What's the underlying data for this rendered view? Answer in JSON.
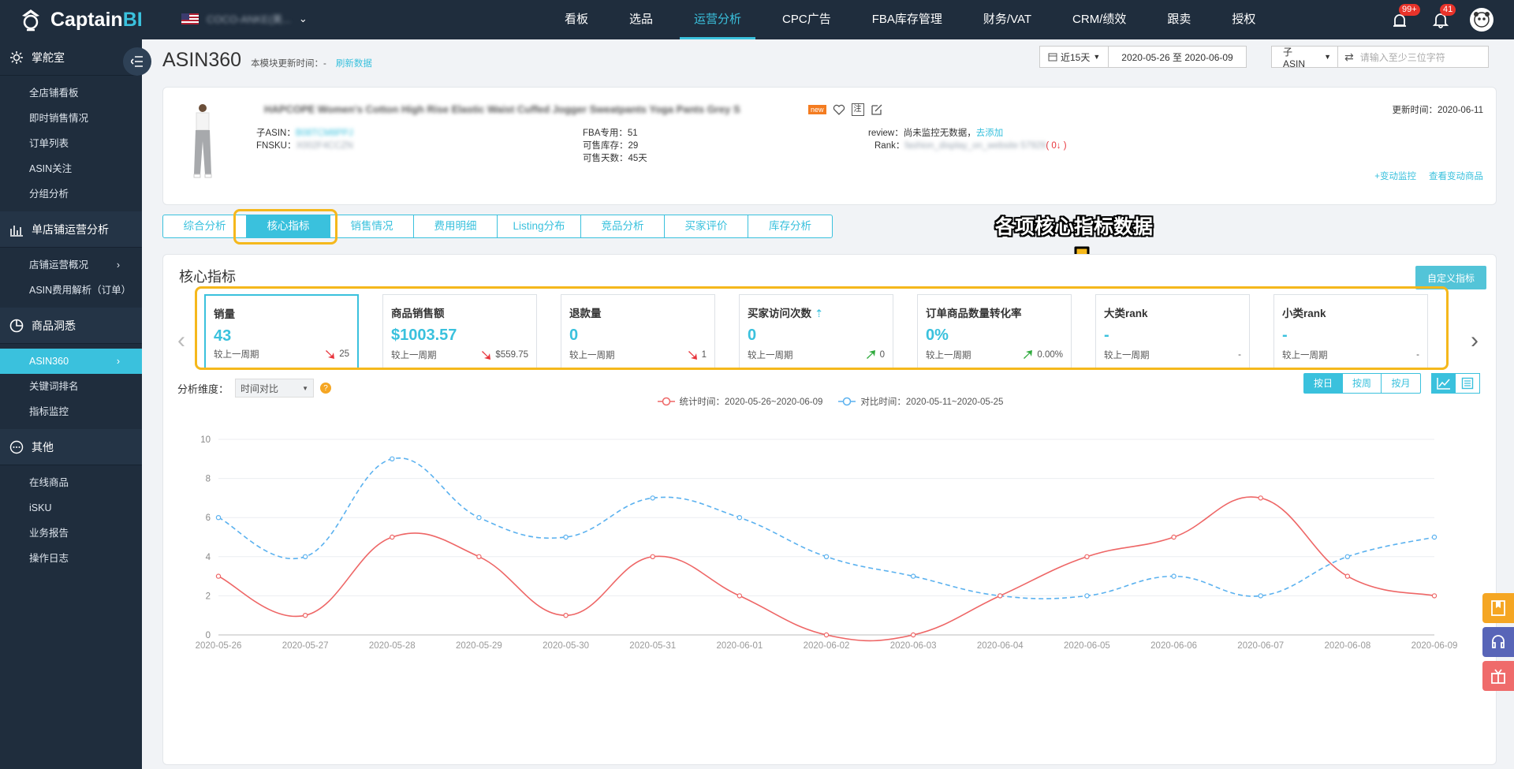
{
  "app": {
    "logo_text": "Captain",
    "logo_accent": "BI",
    "accent_color": "#3ac1dd"
  },
  "header": {
    "store_name": "COCO-ANKE(美...",
    "nav": [
      "看板",
      "选品",
      "运营分析",
      "CPC广告",
      "FBA库存管理",
      "财务/VAT",
      "CRM/绩效",
      "跟卖",
      "授权"
    ],
    "active_nav": 2,
    "alert_badge": "99+",
    "bell_badge": "41"
  },
  "sidebar": {
    "sections": [
      {
        "label": "掌舵室",
        "icon": "gear-icon",
        "items": [
          {
            "label": "全店铺看板"
          },
          {
            "label": "即时销售情况"
          },
          {
            "label": "订单列表"
          },
          {
            "label": "ASIN关注"
          },
          {
            "label": "分组分析"
          }
        ]
      },
      {
        "label": "单店铺运营分析",
        "icon": "bar-chart-icon",
        "items": [
          {
            "label": "店铺运营概况",
            "chev": "›"
          },
          {
            "label": "ASIN费用解析（订单）"
          }
        ]
      },
      {
        "label": "商品洞悉",
        "icon": "pie-chart-icon",
        "items": [
          {
            "label": "ASIN360",
            "chev": "›",
            "active": true
          },
          {
            "label": "关键词排名"
          },
          {
            "label": "指标监控"
          }
        ]
      },
      {
        "label": "其他",
        "icon": "more-icon",
        "items": [
          {
            "label": "在线商品"
          },
          {
            "label": "iSKU"
          },
          {
            "label": "业务报告"
          },
          {
            "label": "操作日志"
          }
        ]
      }
    ]
  },
  "page": {
    "title": "ASIN360",
    "update_label": "本模块更新时间：-",
    "refresh_link": "刷新数据",
    "date_range_label": "近15天",
    "date_range": "2020-05-26 至 2020-06-09",
    "asin_select": "子ASIN",
    "search_placeholder": "请输入至少三位字符"
  },
  "product": {
    "title": "HAPCOPE Women's Cotton High Rise Elastic Waist Cuffed Jogger Sweatpants Yoga Pants Grey S",
    "new_badge": "new",
    "child_asin_label": "子ASIN：",
    "child_asin": "B08TCM8PPJ",
    "fnsku_label": "FNSKU：",
    "fnsku": "X002F4CCZN",
    "fba_label": "FBA专用：",
    "fba_value": "51",
    "sellable_label": "可售库存：",
    "sellable_value": "29",
    "days_label": "可售天数：",
    "days_value": "45天",
    "review_label": "review：",
    "review_value": "尚未监控无数据，",
    "review_link": "去添加",
    "rank_label": "Rank：",
    "rank_value": "fashion_display_on_website 57929",
    "rank_change": "( 0↓ )",
    "updated": "更新时间：2020-06-11",
    "link_monitor": "+变动监控",
    "link_view": "查看变动商品"
  },
  "tabs": [
    "综合分析",
    "核心指标",
    "销售情况",
    "费用明细",
    "Listing分布",
    "竞品分析",
    "买家评价",
    "库存分析"
  ],
  "active_tab": 1,
  "callout": "各项核心指标数据",
  "panel": {
    "title": "核心指标",
    "custom_button": "自定义指标",
    "compare_label": "较上一周期",
    "cards": [
      {
        "title": "销量",
        "value": "43",
        "delta": "25",
        "dir": "down"
      },
      {
        "title": "商品销售额",
        "value": "$1003.57",
        "delta": "$559.75",
        "dir": "down"
      },
      {
        "title": "退款量",
        "value": "0",
        "delta": "1",
        "dir": "down"
      },
      {
        "title": "买家访问次数",
        "value": "0",
        "delta": "0",
        "dir": "up",
        "info": "⇡"
      },
      {
        "title": "订单商品数量转化率",
        "value": "0%",
        "delta": "0.00%",
        "dir": "up"
      },
      {
        "title": "大类rank",
        "value": "-",
        "delta": "-",
        "dir": "none"
      },
      {
        "title": "小类rank",
        "value": "-",
        "delta": "-",
        "dir": "none"
      }
    ],
    "dimension_label": "分析维度：",
    "dimension_value": "时间对比",
    "granularity": [
      "按日",
      "按周",
      "按月"
    ],
    "active_granularity": 0
  },
  "chart_data": {
    "type": "line",
    "x": [
      "2020-05-26",
      "2020-05-27",
      "2020-05-28",
      "2020-05-29",
      "2020-05-30",
      "2020-05-31",
      "2020-06-01",
      "2020-06-02",
      "2020-06-03",
      "2020-06-04",
      "2020-06-05",
      "2020-06-06",
      "2020-06-07",
      "2020-06-08",
      "2020-06-09"
    ],
    "ylim": [
      0,
      10
    ],
    "yticks": [
      0,
      2,
      4,
      6,
      8,
      10
    ],
    "series": [
      {
        "name": "统计时间：2020-05-26~2020-06-09",
        "color": "#ee6666",
        "style": "solid",
        "values": [
          3,
          1,
          5,
          4,
          1,
          4,
          2,
          0,
          0,
          2,
          4,
          5,
          7,
          3,
          2
        ]
      },
      {
        "name": "对比时间：2020-05-11~2020-05-25",
        "color": "#5ab1ef",
        "style": "dashed",
        "values": [
          6,
          4,
          9,
          6,
          5,
          7,
          6,
          4,
          3,
          2,
          2,
          3,
          2,
          4,
          5
        ]
      }
    ]
  }
}
